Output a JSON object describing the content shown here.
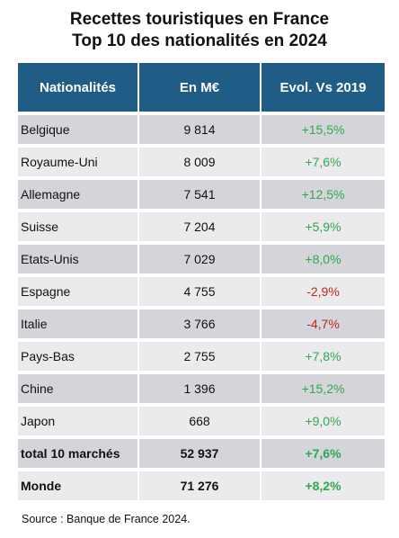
{
  "title": {
    "line1": "Recettes touristiques en France",
    "line2": "Top 10 des nationalités en 2024"
  },
  "table": {
    "headers": [
      "Nationalités",
      "En M€",
      "Evol. Vs 2019"
    ],
    "rows": [
      {
        "country": "Belgique",
        "amount": "9 814",
        "evolution": "+15,5%",
        "trend": "positive"
      },
      {
        "country": "Royaume-Uni",
        "amount": "8 009",
        "evolution": "+7,6%",
        "trend": "positive"
      },
      {
        "country": "Allemagne",
        "amount": "7 541",
        "evolution": "+12,5%",
        "trend": "positive"
      },
      {
        "country": "Suisse",
        "amount": "7 204",
        "evolution": "+5,9%",
        "trend": "positive"
      },
      {
        "country": "Etats-Unis",
        "amount": "7 029",
        "evolution": "+8,0%",
        "trend": "positive"
      },
      {
        "country": "Espagne",
        "amount": "4 755",
        "evolution": "-2,9%",
        "trend": "negative"
      },
      {
        "country": "Italie",
        "amount": "3 766",
        "evolution": "-4,7%",
        "trend": "negative"
      },
      {
        "country": "Pays-Bas",
        "amount": "2 755",
        "evolution": "+7,8%",
        "trend": "positive"
      },
      {
        "country": "Chine",
        "amount": "1 396",
        "evolution": "+15,2%",
        "trend": "positive"
      },
      {
        "country": "Japon",
        "amount": "668",
        "evolution": "+9,0%",
        "trend": "positive"
      }
    ],
    "totals": [
      {
        "country": "total 10 marchés",
        "amount": "52 937",
        "evolution": "+7,6%",
        "trend": "positive"
      },
      {
        "country": "Monde",
        "amount": "71 276",
        "evolution": "+8,2%",
        "trend": "positive"
      }
    ]
  },
  "colors": {
    "header_bg": "#1f5d86",
    "positive": "#2ea84f",
    "negative": "#c0261e",
    "row_dark": "#d4d5da",
    "row_light": "#ebebee"
  },
  "source": "Source : Banque de France 2024."
}
